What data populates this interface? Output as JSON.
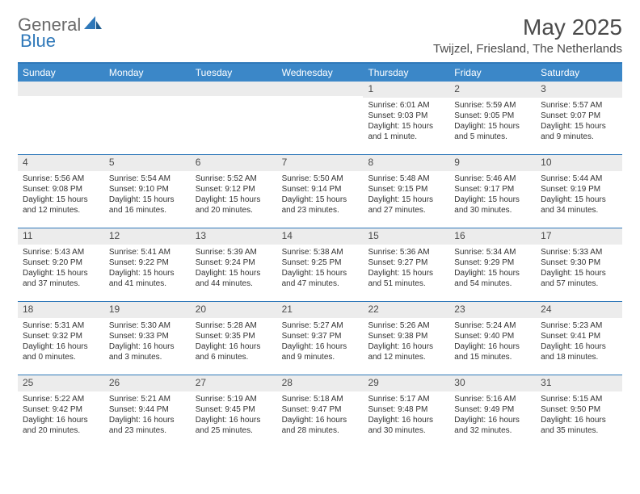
{
  "logo": {
    "general": "General",
    "blue": "Blue"
  },
  "title": "May 2025",
  "location": "Twijzel, Friesland, The Netherlands",
  "colors": {
    "header_bar": "#3b87c8",
    "accent": "#2f78b9",
    "daynum_bg": "#ececec",
    "text": "#333333"
  },
  "weekdays": [
    "Sunday",
    "Monday",
    "Tuesday",
    "Wednesday",
    "Thursday",
    "Friday",
    "Saturday"
  ],
  "weeks": [
    [
      null,
      null,
      null,
      null,
      {
        "n": "1",
        "sunrise": "Sunrise: 6:01 AM",
        "sunset": "Sunset: 9:03 PM",
        "daylight": "Daylight: 15 hours and 1 minute."
      },
      {
        "n": "2",
        "sunrise": "Sunrise: 5:59 AM",
        "sunset": "Sunset: 9:05 PM",
        "daylight": "Daylight: 15 hours and 5 minutes."
      },
      {
        "n": "3",
        "sunrise": "Sunrise: 5:57 AM",
        "sunset": "Sunset: 9:07 PM",
        "daylight": "Daylight: 15 hours and 9 minutes."
      }
    ],
    [
      {
        "n": "4",
        "sunrise": "Sunrise: 5:56 AM",
        "sunset": "Sunset: 9:08 PM",
        "daylight": "Daylight: 15 hours and 12 minutes."
      },
      {
        "n": "5",
        "sunrise": "Sunrise: 5:54 AM",
        "sunset": "Sunset: 9:10 PM",
        "daylight": "Daylight: 15 hours and 16 minutes."
      },
      {
        "n": "6",
        "sunrise": "Sunrise: 5:52 AM",
        "sunset": "Sunset: 9:12 PM",
        "daylight": "Daylight: 15 hours and 20 minutes."
      },
      {
        "n": "7",
        "sunrise": "Sunrise: 5:50 AM",
        "sunset": "Sunset: 9:14 PM",
        "daylight": "Daylight: 15 hours and 23 minutes."
      },
      {
        "n": "8",
        "sunrise": "Sunrise: 5:48 AM",
        "sunset": "Sunset: 9:15 PM",
        "daylight": "Daylight: 15 hours and 27 minutes."
      },
      {
        "n": "9",
        "sunrise": "Sunrise: 5:46 AM",
        "sunset": "Sunset: 9:17 PM",
        "daylight": "Daylight: 15 hours and 30 minutes."
      },
      {
        "n": "10",
        "sunrise": "Sunrise: 5:44 AM",
        "sunset": "Sunset: 9:19 PM",
        "daylight": "Daylight: 15 hours and 34 minutes."
      }
    ],
    [
      {
        "n": "11",
        "sunrise": "Sunrise: 5:43 AM",
        "sunset": "Sunset: 9:20 PM",
        "daylight": "Daylight: 15 hours and 37 minutes."
      },
      {
        "n": "12",
        "sunrise": "Sunrise: 5:41 AM",
        "sunset": "Sunset: 9:22 PM",
        "daylight": "Daylight: 15 hours and 41 minutes."
      },
      {
        "n": "13",
        "sunrise": "Sunrise: 5:39 AM",
        "sunset": "Sunset: 9:24 PM",
        "daylight": "Daylight: 15 hours and 44 minutes."
      },
      {
        "n": "14",
        "sunrise": "Sunrise: 5:38 AM",
        "sunset": "Sunset: 9:25 PM",
        "daylight": "Daylight: 15 hours and 47 minutes."
      },
      {
        "n": "15",
        "sunrise": "Sunrise: 5:36 AM",
        "sunset": "Sunset: 9:27 PM",
        "daylight": "Daylight: 15 hours and 51 minutes."
      },
      {
        "n": "16",
        "sunrise": "Sunrise: 5:34 AM",
        "sunset": "Sunset: 9:29 PM",
        "daylight": "Daylight: 15 hours and 54 minutes."
      },
      {
        "n": "17",
        "sunrise": "Sunrise: 5:33 AM",
        "sunset": "Sunset: 9:30 PM",
        "daylight": "Daylight: 15 hours and 57 minutes."
      }
    ],
    [
      {
        "n": "18",
        "sunrise": "Sunrise: 5:31 AM",
        "sunset": "Sunset: 9:32 PM",
        "daylight": "Daylight: 16 hours and 0 minutes."
      },
      {
        "n": "19",
        "sunrise": "Sunrise: 5:30 AM",
        "sunset": "Sunset: 9:33 PM",
        "daylight": "Daylight: 16 hours and 3 minutes."
      },
      {
        "n": "20",
        "sunrise": "Sunrise: 5:28 AM",
        "sunset": "Sunset: 9:35 PM",
        "daylight": "Daylight: 16 hours and 6 minutes."
      },
      {
        "n": "21",
        "sunrise": "Sunrise: 5:27 AM",
        "sunset": "Sunset: 9:37 PM",
        "daylight": "Daylight: 16 hours and 9 minutes."
      },
      {
        "n": "22",
        "sunrise": "Sunrise: 5:26 AM",
        "sunset": "Sunset: 9:38 PM",
        "daylight": "Daylight: 16 hours and 12 minutes."
      },
      {
        "n": "23",
        "sunrise": "Sunrise: 5:24 AM",
        "sunset": "Sunset: 9:40 PM",
        "daylight": "Daylight: 16 hours and 15 minutes."
      },
      {
        "n": "24",
        "sunrise": "Sunrise: 5:23 AM",
        "sunset": "Sunset: 9:41 PM",
        "daylight": "Daylight: 16 hours and 18 minutes."
      }
    ],
    [
      {
        "n": "25",
        "sunrise": "Sunrise: 5:22 AM",
        "sunset": "Sunset: 9:42 PM",
        "daylight": "Daylight: 16 hours and 20 minutes."
      },
      {
        "n": "26",
        "sunrise": "Sunrise: 5:21 AM",
        "sunset": "Sunset: 9:44 PM",
        "daylight": "Daylight: 16 hours and 23 minutes."
      },
      {
        "n": "27",
        "sunrise": "Sunrise: 5:19 AM",
        "sunset": "Sunset: 9:45 PM",
        "daylight": "Daylight: 16 hours and 25 minutes."
      },
      {
        "n": "28",
        "sunrise": "Sunrise: 5:18 AM",
        "sunset": "Sunset: 9:47 PM",
        "daylight": "Daylight: 16 hours and 28 minutes."
      },
      {
        "n": "29",
        "sunrise": "Sunrise: 5:17 AM",
        "sunset": "Sunset: 9:48 PM",
        "daylight": "Daylight: 16 hours and 30 minutes."
      },
      {
        "n": "30",
        "sunrise": "Sunrise: 5:16 AM",
        "sunset": "Sunset: 9:49 PM",
        "daylight": "Daylight: 16 hours and 32 minutes."
      },
      {
        "n": "31",
        "sunrise": "Sunrise: 5:15 AM",
        "sunset": "Sunset: 9:50 PM",
        "daylight": "Daylight: 16 hours and 35 minutes."
      }
    ]
  ]
}
